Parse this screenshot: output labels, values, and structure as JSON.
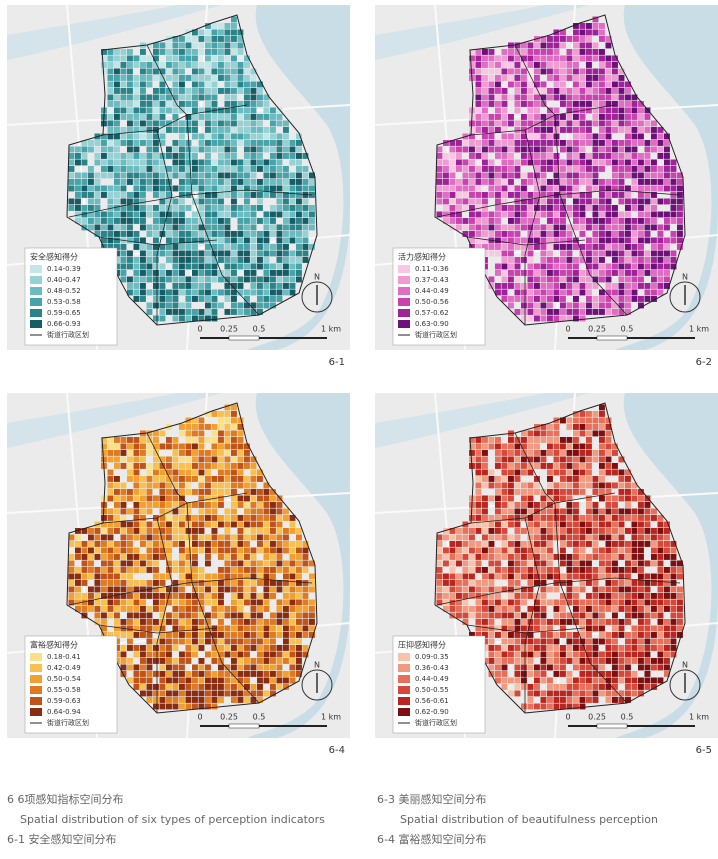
{
  "panels": [
    {
      "label": "6-1",
      "legend": {
        "title": "安全感知得分",
        "items": [
          {
            "label": "0.14-0.39",
            "color": "#c4e6e6"
          },
          {
            "label": "0.40-0.47",
            "color": "#96d2d3"
          },
          {
            "label": "0.48-0.52",
            "color": "#6bbcc0"
          },
          {
            "label": "0.53-0.58",
            "color": "#45a3a9"
          },
          {
            "label": "0.59-0.65",
            "color": "#2a8389"
          },
          {
            "label": "0.66-0.93",
            "color": "#175d66"
          }
        ],
        "boundary": "街道行政区划"
      },
      "scale": [
        "0",
        "0.25",
        "0.5",
        "1 km"
      ],
      "north": "N"
    },
    {
      "label": "6-2",
      "legend": {
        "title": "活力感知得分",
        "items": [
          {
            "label": "0.11-0.36",
            "color": "#f8c8e2"
          },
          {
            "label": "0.37-0.43",
            "color": "#f09cd2"
          },
          {
            "label": "0.44-0.49",
            "color": "#e06cc4"
          },
          {
            "label": "0.50-0.56",
            "color": "#c942b0"
          },
          {
            "label": "0.57-0.62",
            "color": "#a0229b"
          },
          {
            "label": "0.63-0.90",
            "color": "#6e107a"
          }
        ],
        "boundary": "街道行政区划"
      },
      "scale": [
        "0",
        "0.25",
        "0.5",
        "1 km"
      ],
      "north": "N"
    },
    {
      "label": "6-4",
      "legend": {
        "title": "富裕感知得分",
        "items": [
          {
            "label": "0.18-0.41",
            "color": "#fbe08c"
          },
          {
            "label": "0.42-0.49",
            "color": "#f7c050"
          },
          {
            "label": "0.50-0.54",
            "color": "#f2a030"
          },
          {
            "label": "0.55-0.58",
            "color": "#e07a20"
          },
          {
            "label": "0.59-0.63",
            "color": "#c0531a"
          },
          {
            "label": "0.64-0.94",
            "color": "#8a2c12"
          }
        ],
        "boundary": "街道行政区划"
      },
      "scale": [
        "0",
        "0.25",
        "0.5",
        "1 km"
      ],
      "north": "N"
    },
    {
      "label": "6-5",
      "legend": {
        "title": "压抑感知得分",
        "items": [
          {
            "label": "0.09-0.35",
            "color": "#f9c2ac"
          },
          {
            "label": "0.36-0.43",
            "color": "#f29a80"
          },
          {
            "label": "0.44-0.49",
            "color": "#e8705a"
          },
          {
            "label": "0.50-0.55",
            "color": "#d84838"
          },
          {
            "label": "0.56-0.61",
            "color": "#b8261f"
          },
          {
            "label": "0.62-0.90",
            "color": "#7e0f10"
          }
        ],
        "boundary": "街道行政区划"
      },
      "scale": [
        "0",
        "0.25",
        "0.5",
        "1 km"
      ],
      "north": "N"
    }
  ],
  "captions": {
    "left": [
      "6 6项感知指标空间分布",
      "Spatial distribution of six types of perception indicators",
      "6-1 安全感知空间分布"
    ],
    "right": [
      "6-3 美丽感知空间分布",
      "Spatial distribution of beautifulness perception",
      "6-4 富裕感知空间分布"
    ]
  }
}
